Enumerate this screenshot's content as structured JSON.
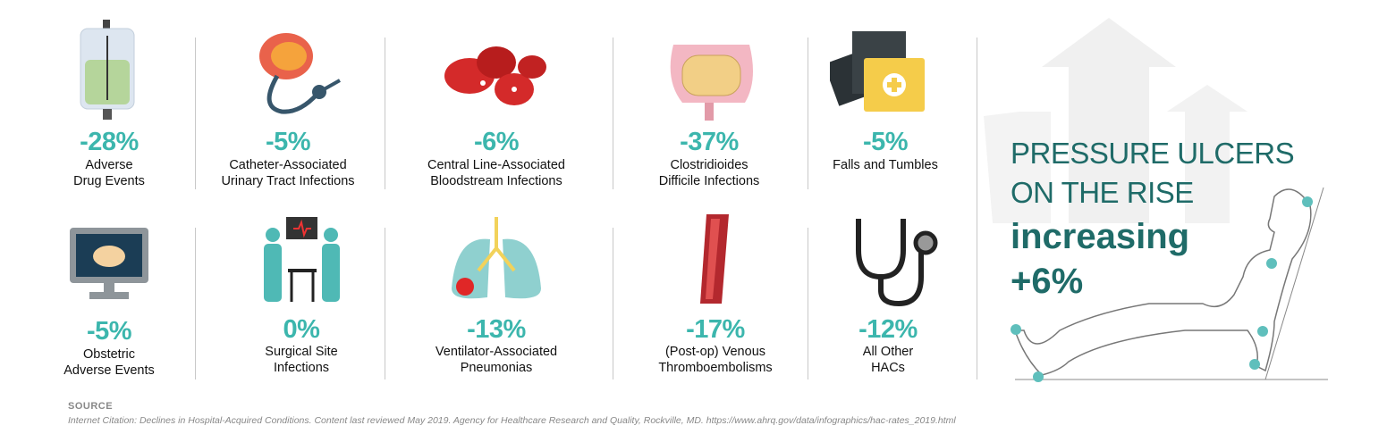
{
  "colors": {
    "accent": "#3cb6ad",
    "headline": "#1f6b68",
    "text": "#111111",
    "source": "#888888"
  },
  "items": [
    {
      "pct": "-28%",
      "line1": "Adverse",
      "line2": "Drug Events",
      "icon": "iv-bag-icon"
    },
    {
      "pct": "-5%",
      "line1": "Catheter-Associated",
      "line2": "Urinary Tract Infections",
      "icon": "catheter-icon"
    },
    {
      "pct": "-6%",
      "line1": "Central Line-Associated",
      "line2": "Bloodstream Infections",
      "icon": "blood-cells-icon"
    },
    {
      "pct": "-37%",
      "line1": "Clostridioides",
      "line2": "Difficile Infections",
      "icon": "intestines-icon"
    },
    {
      "pct": "-5%",
      "line1": "Falls and Tumbles",
      "line2": "",
      "icon": "xray-folder-icon"
    },
    {
      "pct": "-5%",
      "line1": "Obstetric",
      "line2": "Adverse Events",
      "icon": "ultrasound-monitor-icon"
    },
    {
      "pct": "0%",
      "line1": "Surgical Site",
      "line2": "Infections",
      "icon": "surgeons-icon"
    },
    {
      "pct": "-13%",
      "line1": "Ventilator-Associated",
      "line2": "Pneumonias",
      "icon": "lungs-icon"
    },
    {
      "pct": "-17%",
      "line1": "(Post-op) Venous",
      "line2": "Thromboembolisms",
      "icon": "vein-icon"
    },
    {
      "pct": "-12%",
      "line1": "All Other",
      "line2": "HACs",
      "icon": "stethoscope-icon"
    }
  ],
  "highlight": {
    "line1": "PRESSURE ULCERS",
    "line2": "ON THE RISE",
    "line3": "increasing",
    "line4": "+6%",
    "icon": "reclining-patient-icon"
  },
  "source": {
    "heading": "SOURCE",
    "citation": "Internet Citation: Declines in Hospital-Acquired Conditions. Content last reviewed May 2019. Agency for Healthcare Research and Quality, Rockville, MD.  https://www.ahrq.gov/data/infographics/hac-rates_2019.html"
  }
}
